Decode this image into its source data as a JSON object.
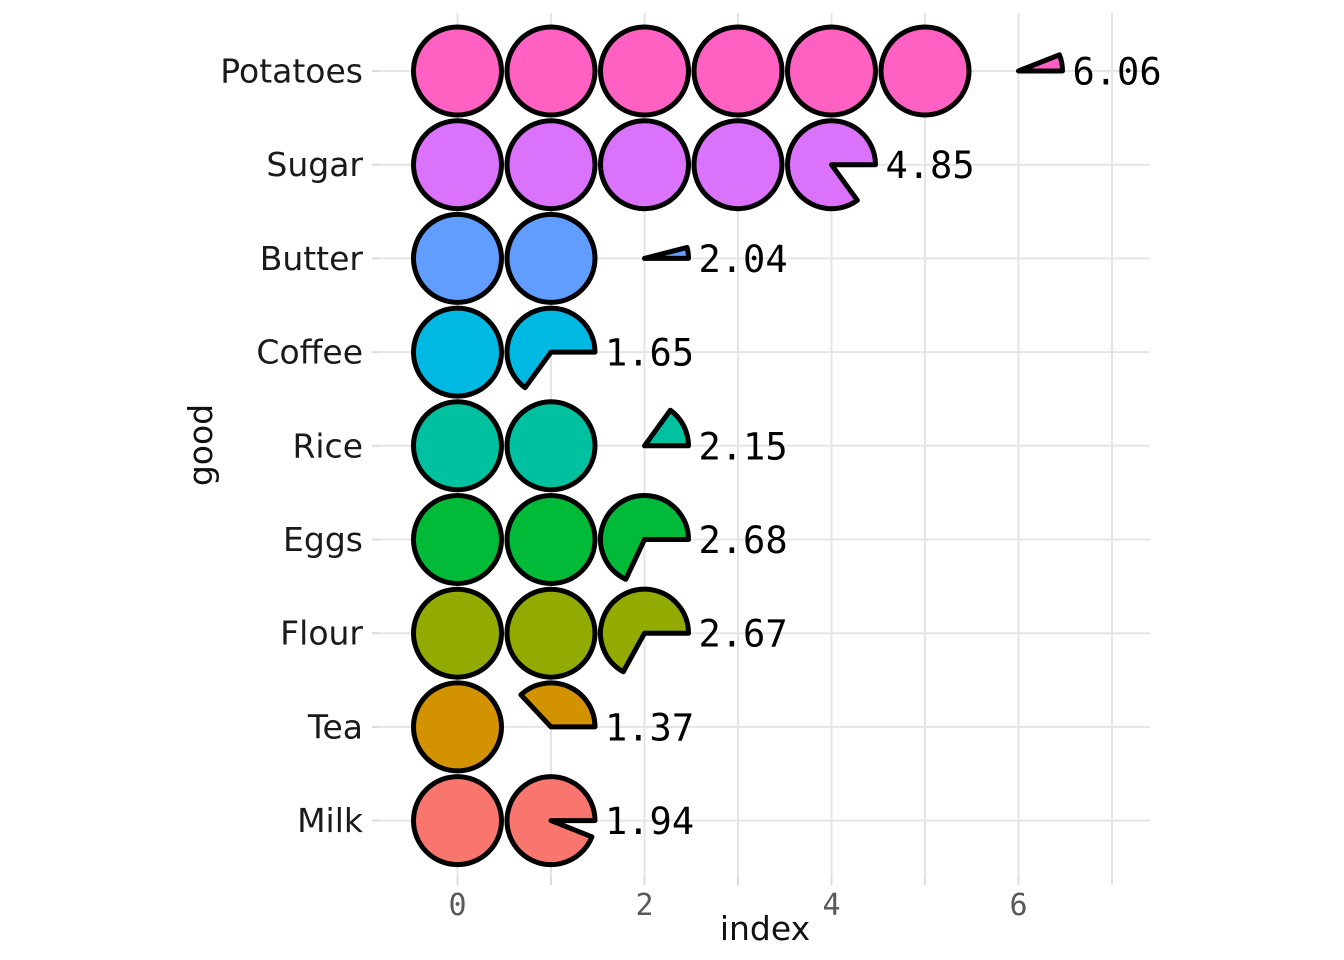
{
  "chart_data": {
    "type": "bar",
    "glyph_style": "pie-circle-pictogram",
    "title": "",
    "xlabel": "index",
    "ylabel": "good",
    "categories": [
      "Potatoes",
      "Sugar",
      "Butter",
      "Coffee",
      "Rice",
      "Eggs",
      "Flour",
      "Tea",
      "Milk"
    ],
    "values": [
      6.06,
      4.85,
      2.04,
      1.65,
      2.15,
      2.68,
      2.67,
      1.37,
      1.94
    ],
    "value_labels": [
      "6.06",
      "4.85",
      "2.04",
      "1.65",
      "2.15",
      "2.68",
      "2.67",
      "1.37",
      "1.94"
    ],
    "colors": [
      "#FF61C3",
      "#DB72FB",
      "#619CFF",
      "#00B9E3",
      "#00C19F",
      "#00BA38",
      "#93AA00",
      "#D39200",
      "#F8766D"
    ],
    "x_ticks": [
      0,
      2,
      4,
      6
    ],
    "x_tick_labels": [
      "0",
      "2",
      "4",
      "6"
    ],
    "x_gridline_positions": [
      0,
      1,
      2,
      3,
      4,
      5,
      6,
      7
    ],
    "xlim": [
      -0.78,
      7.4
    ],
    "grid": "on",
    "legend": "none",
    "glyph_outline_color": "#000000",
    "gridline_color": "#E5E5E5",
    "tick_mark_color": "#DCDCDC",
    "tick_label_color": "#595959",
    "row_label_color": "#1A1A1A",
    "value_label_color": "#000000",
    "background": "#FFFFFF"
  }
}
